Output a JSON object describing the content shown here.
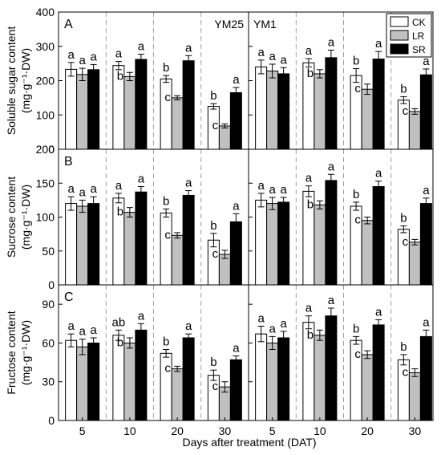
{
  "chart_data": {
    "type": "bar",
    "xlabel": "Days after treatment (DAT)",
    "categories": [
      "5",
      "10",
      "20",
      "30"
    ],
    "legend": {
      "placement": "top-right",
      "entries": [
        {
          "name": "CK",
          "color": "#ffffff"
        },
        {
          "name": "LR",
          "color": "#c0c0c0"
        },
        {
          "name": "SR",
          "color": "#000000"
        }
      ]
    },
    "varieties": [
      "YM25",
      "YM1"
    ],
    "panels": [
      {
        "letter": "A",
        "ylabel": "Soluble sugar content",
        "yunit": "(mg·g⁻¹·DW)",
        "ylim": [
          0,
          400
        ],
        "yticks": [
          0,
          100,
          200,
          300,
          400
        ],
        "data": {
          "YM25": {
            "CK": {
              "values": [
                233,
                244,
                205,
                125
              ],
              "errors": [
                20,
                12,
                10,
                8
              ],
              "labels": [
                "a",
                "a",
                "b",
                "b"
              ]
            },
            "LR": {
              "values": [
                218,
                212,
                150,
                68
              ],
              "errors": [
                18,
                12,
                6,
                6
              ],
              "labels": [
                "a",
                "b",
                "c",
                "c"
              ]
            },
            "SR": {
              "values": [
                232,
                262,
                258,
                165
              ],
              "errors": [
                15,
                15,
                15,
                15
              ],
              "labels": [
                "a",
                "a",
                "a",
                "a"
              ]
            }
          },
          "YM1": {
            "CK": {
              "values": [
                240,
                252,
                215,
                143
              ],
              "errors": [
                20,
                12,
                20,
                10
              ],
              "labels": [
                "a",
                "a",
                "b",
                "b"
              ]
            },
            "LR": {
              "values": [
                228,
                220,
                175,
                110
              ],
              "errors": [
                20,
                12,
                15,
                8
              ],
              "labels": [
                "a",
                "b",
                "c",
                "c"
              ]
            },
            "SR": {
              "values": [
                220,
                267,
                263,
                217
              ],
              "errors": [
                18,
                22,
                22,
                17
              ],
              "labels": [
                "a",
                "a",
                "a",
                "a"
              ]
            }
          }
        }
      },
      {
        "letter": "B",
        "ylabel": "Sucrose content",
        "yunit": "(mg·g⁻¹·DW)",
        "ylim": [
          0,
          200
        ],
        "yticks": [
          0,
          50,
          100,
          150,
          200
        ],
        "data": {
          "YM25": {
            "CK": {
              "values": [
                120,
                128,
                106,
                66
              ],
              "errors": [
                10,
                7,
                6,
                10
              ],
              "labels": [
                "a",
                "a",
                "b",
                "b"
              ]
            },
            "LR": {
              "values": [
                116,
                107,
                73,
                45
              ],
              "errors": [
                9,
                7,
                4,
                6
              ],
              "labels": [
                "a",
                "b",
                "c",
                "c"
              ]
            },
            "SR": {
              "values": [
                120,
                137,
                132,
                93
              ],
              "errors": [
                10,
                8,
                7,
                12
              ],
              "labels": [
                "a",
                "a",
                "a",
                "a"
              ]
            }
          },
          "YM1": {
            "CK": {
              "values": [
                125,
                138,
                116,
                82
              ],
              "errors": [
                10,
                8,
                6,
                5
              ],
              "labels": [
                "a",
                "a",
                "b",
                "b"
              ]
            },
            "LR": {
              "values": [
                120,
                118,
                95,
                63
              ],
              "errors": [
                9,
                6,
                5,
                4
              ],
              "labels": [
                "a",
                "b",
                "c",
                "c"
              ]
            },
            "SR": {
              "values": [
                122,
                154,
                145,
                120
              ],
              "errors": [
                7,
                9,
                8,
                8
              ],
              "labels": [
                "a",
                "a",
                "a",
                "a"
              ]
            }
          }
        }
      },
      {
        "letter": "C",
        "ylabel": "Fructose  content",
        "yunit": "(mg·g⁻¹·DW)",
        "ylim": [
          0,
          105
        ],
        "yticks": [
          0,
          30,
          60,
          90
        ],
        "data": {
          "YM25": {
            "CK": {
              "values": [
                62,
                66,
                52,
                35
              ],
              "errors": [
                5,
                4,
                3,
                4
              ],
              "labels": [
                "a",
                "ab",
                "b",
                "b"
              ]
            },
            "LR": {
              "values": [
                57,
                60,
                40,
                26
              ],
              "errors": [
                6,
                4,
                2,
                4
              ],
              "labels": [
                "a",
                "b",
                "c",
                "c"
              ]
            },
            "SR": {
              "values": [
                60,
                70,
                64,
                47
              ],
              "errors": [
                4,
                5,
                3,
                3
              ],
              "labels": [
                "a",
                "a",
                "a",
                "a"
              ]
            }
          },
          "YM1": {
            "CK": {
              "values": [
                67,
                76,
                62,
                47
              ],
              "errors": [
                6,
                5,
                3,
                4
              ],
              "labels": [
                "a",
                "a",
                "b",
                "b"
              ]
            },
            "LR": {
              "values": [
                60,
                66,
                51,
                37
              ],
              "errors": [
                5,
                4,
                3,
                3
              ],
              "labels": [
                "a",
                "b",
                "c",
                "c"
              ]
            },
            "SR": {
              "values": [
                64,
                81,
                74,
                65
              ],
              "errors": [
                5,
                6,
                4,
                5
              ],
              "labels": [
                "a",
                "a",
                "a",
                "a"
              ]
            }
          }
        }
      }
    ]
  }
}
